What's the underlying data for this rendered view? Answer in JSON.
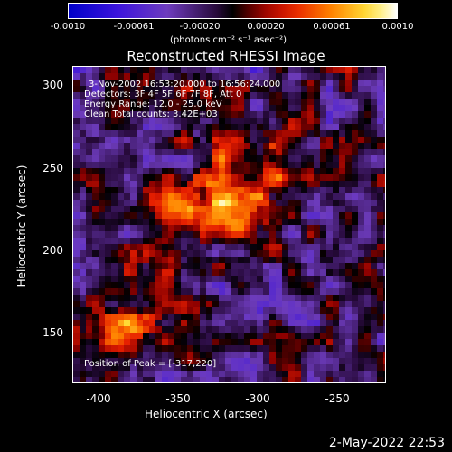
{
  "colorbar": {
    "ticks": [
      "-0.0010",
      "-0.00061",
      "-0.00020",
      "0.00020",
      "0.00061",
      "0.0010"
    ],
    "units": "(photons cm⁻² s⁻¹ asec⁻²)"
  },
  "title": "Reconstructed RHESSI Image",
  "annotations": {
    "line1": "3-Nov-2002 16:53:20.000 to 16:56:24.000",
    "line2": "Detectors: 3F 4F 5F 6F 7F 8F, Att 0",
    "line3": "Energy Range: 12.0 - 25.0 keV",
    "line4": "Clean     Total counts: 3.42E+03",
    "peak": "Position of Peak = [-317,220]"
  },
  "axes": {
    "xlabel": "Heliocentric X (arcsec)",
    "ylabel": "Heliocentric Y (arcsec)",
    "xticks": [
      "-400",
      "-350",
      "-300",
      "-250"
    ],
    "yticks": [
      "300",
      "250",
      "200",
      "150"
    ]
  },
  "footer": "2-May-2022 22:53"
}
